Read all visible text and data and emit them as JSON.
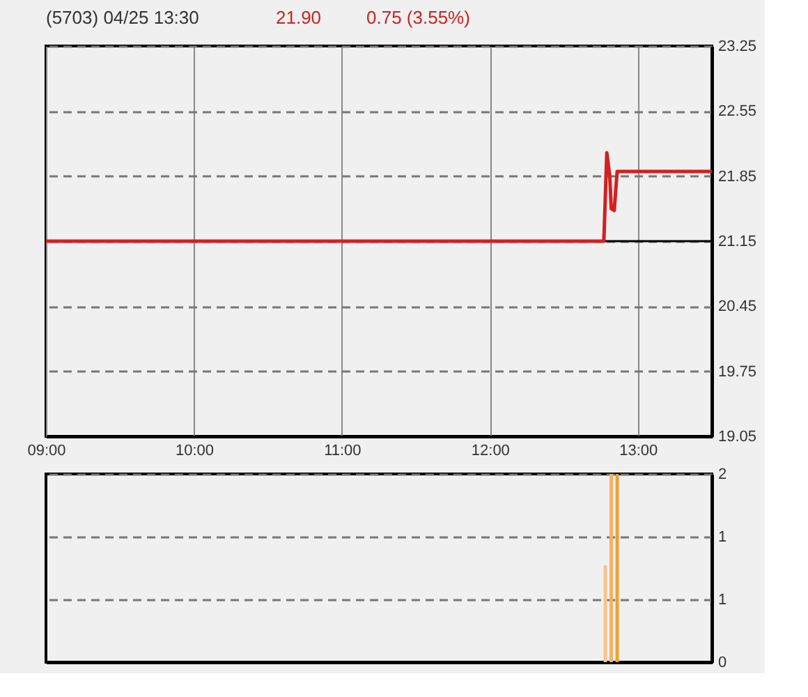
{
  "chart_data": [
    {
      "type": "line",
      "title": "(5703)  04/25 13:30",
      "annotations": [
        "21.90",
        "0.75 (3.55%)"
      ],
      "x": [
        9,
        12.77,
        12.79,
        12.81,
        12.82,
        12.84,
        12.86,
        13.5
      ],
      "series": [
        {
          "color": "#d42020",
          "values": [
            21.15,
            21.15,
            22.1,
            21.85,
            21.5,
            21.48,
            21.9,
            21.9
          ]
        }
      ],
      "xlim": [
        9,
        13.5
      ],
      "xticks": [
        {
          "value": 9,
          "label": "09:00"
        },
        {
          "value": 10,
          "label": "10:00"
        },
        {
          "value": 11,
          "label": "11:00"
        },
        {
          "value": 12,
          "label": "12:00"
        },
        {
          "value": 13,
          "label": "13:00"
        }
      ],
      "ylim": [
        19.05,
        23.25
      ],
      "yticks": [
        19.05,
        19.75,
        20.45,
        21.15,
        21.85,
        22.55,
        23.25
      ],
      "ref_lines": [
        {
          "axis": "y",
          "value": 21.15,
          "color": "#000000"
        }
      ],
      "grid": true,
      "line_style": "solid"
    },
    {
      "type": "bar",
      "x": [
        12.78,
        12.82,
        12.86
      ],
      "values": [
        1.03,
        2,
        2
      ],
      "colors": [
        "#f5c58a",
        "#f5b060",
        "#f0a030"
      ],
      "xlim": [
        9,
        13.5
      ],
      "ylim": [
        0,
        2
      ],
      "yticks": [
        0,
        {
          "value": 0.667,
          "label": "1"
        },
        {
          "value": 1.333,
          "label": "1"
        },
        2
      ],
      "grid": "y",
      "tick_labels": "y"
    }
  ]
}
